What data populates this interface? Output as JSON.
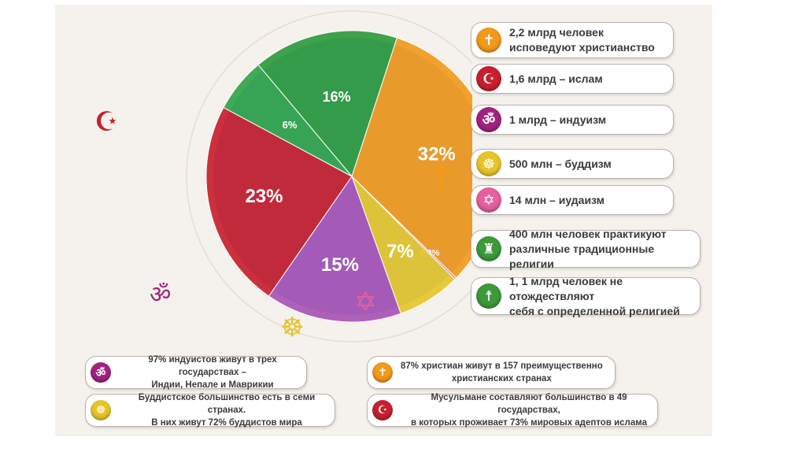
{
  "chart_data": {
    "type": "pie",
    "slices": [
      {
        "label": "16%",
        "value": 16,
        "color": "#2e9a3e"
      },
      {
        "label": "32%",
        "value": 32,
        "color": "#f29a1c"
      },
      {
        "label": "0,2%",
        "value": 0.2,
        "color": "#e5609c"
      },
      {
        "label": "7%",
        "value": 7,
        "color": "#e6c52b"
      },
      {
        "label": "15%",
        "value": 15,
        "color": "#a855b5"
      },
      {
        "label": "23%",
        "value": 23,
        "color": "#c8202e"
      },
      {
        "label": "6%",
        "value": 6,
        "color": "#32a44a"
      }
    ]
  },
  "legend": [
    {
      "text": "2,2 млрд человек\nисповедуют христианство",
      "icon": "cross-icon",
      "glyph": "✝",
      "color": "#f29a1c"
    },
    {
      "text": "1,6 млрд – ислам",
      "icon": "crescent-icon",
      "glyph": "☪",
      "color": "#c8202e"
    },
    {
      "text": "1 млрд – индуизм",
      "icon": "om-icon",
      "glyph": "ॐ",
      "color": "#a2237f"
    },
    {
      "text": "500 млн – буддизм",
      "icon": "dharma-wheel-icon",
      "glyph": "☸",
      "color": "#e6c52b"
    },
    {
      "text": "14 млн – иудаизм",
      "icon": "star-of-david-icon",
      "glyph": "✡",
      "color": "#e5609c"
    },
    {
      "text": "400 млн человек практикуют\nразличные традиционные религии",
      "icon": "drum-icon",
      "glyph": "♜",
      "color": "#3d9a3a"
    },
    {
      "text": "1, 1 млрд человек  не отождествляют\nсебя с определенной религией",
      "icon": "person-icon",
      "glyph": "☨",
      "color": "#3d9a3a"
    }
  ],
  "notes": [
    {
      "text": "97% индуистов живут в трех государствах –\nИндии, Непале и Маврикии",
      "icon": "om-icon",
      "glyph": "ॐ",
      "color": "#a2237f"
    },
    {
      "text": "87% христиан  живут в 157 преимущественно\nхристианских странах",
      "icon": "cross-icon",
      "glyph": "✝",
      "color": "#f29a1c"
    },
    {
      "text": "Буддистское большинство есть в семи странах.\nВ них живут 72% буддистов мира",
      "icon": "dharma-wheel-icon",
      "glyph": "☸",
      "color": "#e6c52b"
    },
    {
      "text": "Мусульмане составляют большинство в 49 государствах,\nв которых проживает 73% мировых адептов ислама",
      "icon": "crescent-icon",
      "glyph": "☪",
      "color": "#c8202e"
    }
  ],
  "side_symbols": [
    {
      "icon": "crescent-icon",
      "glyph": "☪",
      "color": "#c8202e"
    },
    {
      "icon": "cross-icon",
      "glyph": "✝",
      "color": "#f29a1c"
    },
    {
      "icon": "om-icon",
      "glyph": "ॐ",
      "color": "#a2237f"
    },
    {
      "icon": "dharma-wheel-icon",
      "glyph": "☸",
      "color": "#e6c52b"
    },
    {
      "icon": "star-of-david-icon",
      "glyph": "✡",
      "color": "#e5609c"
    }
  ]
}
